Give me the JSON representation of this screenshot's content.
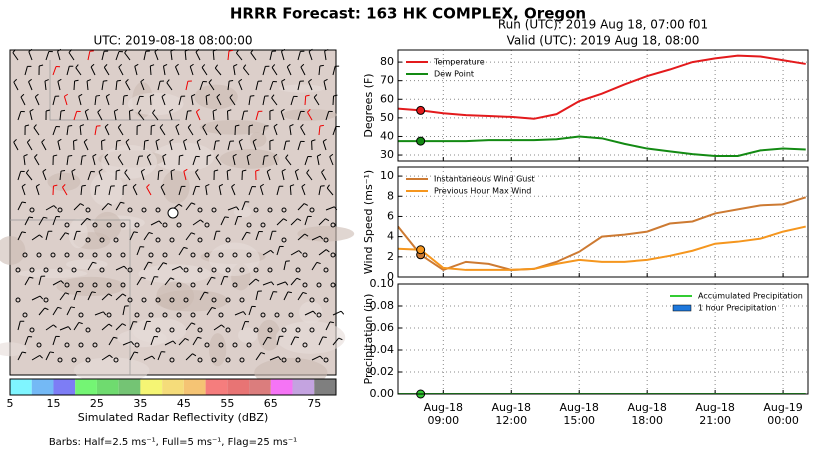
{
  "title": "HRRR Forecast: 163 HK COMPLEX, Oregon",
  "chart_data": [
    {
      "type": "map",
      "title": "UTC: 2019-08-18 08:00:00",
      "colorbar": {
        "bins": [
          5,
          10,
          15,
          20,
          25,
          30,
          35,
          40,
          45,
          50,
          55,
          60,
          65,
          70,
          75,
          80
        ],
        "colors": [
          "#7ff5ff",
          "#74b9f5",
          "#7d7df5",
          "#74f574",
          "#6fdb6f",
          "#74c474",
          "#f5f574",
          "#f5dc7a",
          "#f5c474",
          "#f57d7d",
          "#e87474",
          "#db7d7d",
          "#f574f5",
          "#c4a3e0",
          "#7f7f7f"
        ],
        "ticks": [
          5,
          15,
          25,
          35,
          45,
          55,
          65,
          75
        ],
        "label": "Simulated Radar Reflectivity (dBZ)"
      },
      "note": "Barbs: Half=2.5 ms⁻¹, Full=5 ms⁻¹, Flag=25 ms⁻¹"
    },
    {
      "type": "line",
      "title": "Run (UTC): 2019 Aug 18, 07:00 f01",
      "subtitle": "Valid (UTC): 2019 Aug 18, 08:00",
      "ylabel": "Degrees (F)",
      "x": [
        7,
        8,
        9,
        10,
        11,
        12,
        13,
        14,
        15,
        16,
        17,
        18,
        19,
        20,
        21,
        22,
        23,
        24,
        25
      ],
      "series": [
        {
          "name": "Temperature",
          "color": "#e31a1c",
          "style": "line",
          "values": [
            55,
            54,
            52.5,
            51.5,
            51,
            50.5,
            49.5,
            52,
            59,
            63,
            68,
            72.5,
            76,
            80,
            82,
            83.5,
            83,
            81,
            79
          ]
        },
        {
          "name": "Dew Point",
          "color": "#138a13",
          "style": "line",
          "values": [
            37.5,
            37.5,
            37.5,
            37.5,
            38,
            38,
            38,
            38.5,
            40,
            39,
            36,
            33.5,
            32,
            30.5,
            29.5,
            29.5,
            32.5,
            33.5,
            33
          ]
        }
      ],
      "highlight_index": 1,
      "xlim": [
        7,
        25.1
      ],
      "xticks": [
        9,
        12,
        15,
        18,
        21,
        24
      ],
      "ylim": [
        26.8,
        86.5
      ],
      "yticks": [
        30,
        40,
        50,
        60,
        70,
        80
      ],
      "grid": true,
      "legend": "upper left"
    },
    {
      "type": "line",
      "ylabel": "Wind Speed (ms⁻¹)",
      "x": [
        7,
        8,
        9,
        10,
        11,
        12,
        13,
        14,
        15,
        16,
        17,
        18,
        19,
        20,
        21,
        22,
        23,
        24,
        25
      ],
      "series": [
        {
          "name": "Instantaneous Wind Gust",
          "color": "#cd7a32",
          "style": "line",
          "values": [
            5,
            2.2,
            0.7,
            1.5,
            1.3,
            0.7,
            0.8,
            1.5,
            2.5,
            4,
            4.2,
            4.5,
            5.3,
            5.5,
            6.3,
            6.7,
            7.1,
            7.2,
            7.9
          ]
        },
        {
          "name": "Previous Hour Max Wind",
          "color": "#f5961e",
          "style": "line",
          "values": [
            2.8,
            2.7,
            0.9,
            0.7,
            0.7,
            0.7,
            0.8,
            1.3,
            1.7,
            1.5,
            1.5,
            1.7,
            2.1,
            2.6,
            3.3,
            3.5,
            3.8,
            4.5,
            5
          ]
        }
      ],
      "highlight_index": 1,
      "xlim": [
        7,
        25.1
      ],
      "xticks": [
        9,
        12,
        15,
        18,
        21,
        24
      ],
      "ylim": [
        0,
        10.9
      ],
      "yticks": [
        0,
        2,
        4,
        6,
        8,
        10
      ],
      "grid": true,
      "legend": "upper left"
    },
    {
      "type": "line",
      "ylabel": "Precipitation (in)",
      "x": [
        7,
        8,
        9,
        10,
        11,
        12,
        13,
        14,
        15,
        16,
        17,
        18,
        19,
        20,
        21,
        22,
        23,
        24,
        25
      ],
      "series": [
        {
          "name": "Accumulated Precipitation",
          "color": "#33cc33",
          "style": "line",
          "values": [
            0,
            0,
            0,
            0,
            0,
            0,
            0,
            0,
            0,
            0,
            0,
            0,
            0,
            0,
            0,
            0,
            0,
            0,
            0
          ]
        },
        {
          "name": "1 hour Precipitation",
          "color": "#1e78dc",
          "style": "bar",
          "values": [
            0,
            0,
            0,
            0,
            0,
            0,
            0,
            0,
            0,
            0,
            0,
            0,
            0,
            0,
            0,
            0,
            0,
            0,
            0
          ]
        }
      ],
      "highlight_index": 1,
      "xlim": [
        7,
        25.1
      ],
      "xticks": [
        {
          "value": 9,
          "label": "Aug-18 09:00"
        },
        {
          "value": 12,
          "label": "Aug-18 12:00"
        },
        {
          "value": 15,
          "label": "Aug-18 15:00"
        },
        {
          "value": 18,
          "label": "Aug-18 18:00"
        },
        {
          "value": 21,
          "label": "Aug-18 21:00"
        },
        {
          "value": 24,
          "label": "Aug-19 00:00"
        }
      ],
      "ylim": [
        0,
        0.1
      ],
      "yticks": [
        {
          "value": 0,
          "label": "0.00"
        },
        {
          "value": 0.02,
          "label": "0.02"
        },
        {
          "value": 0.04,
          "label": "0.04"
        },
        {
          "value": 0.06,
          "label": "0.06"
        },
        {
          "value": 0.08,
          "label": "0.08"
        },
        {
          "value": 0.1,
          "label": "0.10"
        }
      ],
      "grid": true,
      "legend": "upper right"
    }
  ]
}
